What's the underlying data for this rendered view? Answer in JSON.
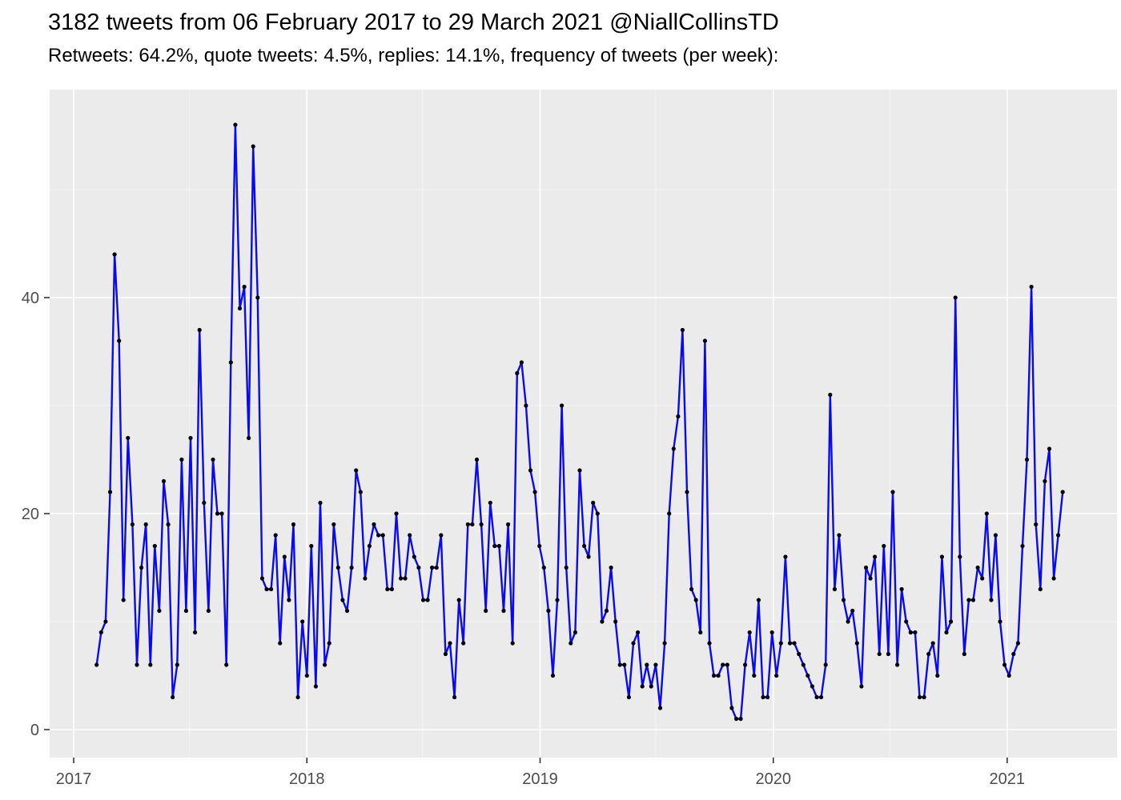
{
  "header": {
    "title": "3182 tweets from 06 February 2017 to 29 March 2021 @NiallCollinsTD",
    "subtitle": "Retweets: 64.2%, quote tweets: 4.5%, replies: 14.1%, frequency of tweets (per week):"
  },
  "chart_data": {
    "type": "line",
    "title": "3182 tweets from 06 February 2017 to 29 March 2021 @NiallCollinsTD",
    "subtitle": "Retweets: 64.2%, quote tweets: 4.5%, replies: 14.1%, frequency of tweets (per week):",
    "x_start_date": "2017-02-06",
    "x_end_date": "2021-03-29",
    "interval": "weekly",
    "ylabel": "",
    "xlabel": "",
    "ylim": [
      -2.5,
      59
    ],
    "grid": true,
    "legend": false,
    "x_tick_labels": [
      "2017",
      "2018",
      "2019",
      "2020",
      "2021"
    ],
    "y_tick_labels": [
      "0",
      "20",
      "40"
    ],
    "y_major_ticks": [
      0,
      20,
      40
    ],
    "y_minor_ticks": [
      10,
      30,
      50
    ],
    "values": [
      6,
      9,
      10,
      22,
      44,
      36,
      12,
      27,
      19,
      6,
      15,
      19,
      6,
      17,
      11,
      23,
      19,
      3,
      6,
      25,
      11,
      27,
      9,
      37,
      21,
      11,
      25,
      20,
      20,
      6,
      34,
      56,
      39,
      41,
      27,
      54,
      40,
      14,
      13,
      13,
      18,
      8,
      16,
      12,
      19,
      3,
      10,
      5,
      17,
      4,
      21,
      6,
      8,
      19,
      15,
      12,
      11,
      15,
      24,
      22,
      14,
      17,
      19,
      18,
      18,
      13,
      13,
      20,
      14,
      14,
      18,
      16,
      15,
      12,
      12,
      15,
      15,
      18,
      7,
      8,
      3,
      12,
      8,
      19,
      19,
      25,
      19,
      11,
      21,
      17,
      17,
      11,
      19,
      8,
      33,
      34,
      30,
      24,
      22,
      17,
      15,
      11,
      5,
      12,
      30,
      15,
      8,
      9,
      24,
      17,
      16,
      21,
      20,
      10,
      11,
      15,
      10,
      6,
      6,
      3,
      8,
      9,
      4,
      6,
      4,
      6,
      2,
      8,
      20,
      26,
      29,
      37,
      22,
      13,
      12,
      9,
      36,
      8,
      5,
      5,
      6,
      6,
      2,
      1,
      1,
      6,
      9,
      5,
      12,
      3,
      3,
      9,
      5,
      8,
      16,
      8,
      8,
      7,
      6,
      5,
      4,
      3,
      3,
      6,
      31,
      13,
      18,
      12,
      10,
      11,
      8,
      4,
      15,
      14,
      16,
      7,
      17,
      7,
      22,
      6,
      13,
      10,
      9,
      9,
      3,
      3,
      7,
      8,
      5,
      16,
      9,
      10,
      40,
      16,
      7,
      12,
      12,
      15,
      14,
      20,
      12,
      18,
      10,
      6,
      5,
      7,
      8,
      17,
      25,
      41,
      19,
      13,
      23,
      26,
      14,
      18,
      22
    ],
    "colors": {
      "line": "#0a0aee",
      "point": "#000000",
      "panel_background": "#ebebeb",
      "grid_major": "#ffffff",
      "grid_minor": "#f5f5f5",
      "axis_text": "#4d4d4d",
      "tick_mark": "#333333"
    }
  }
}
